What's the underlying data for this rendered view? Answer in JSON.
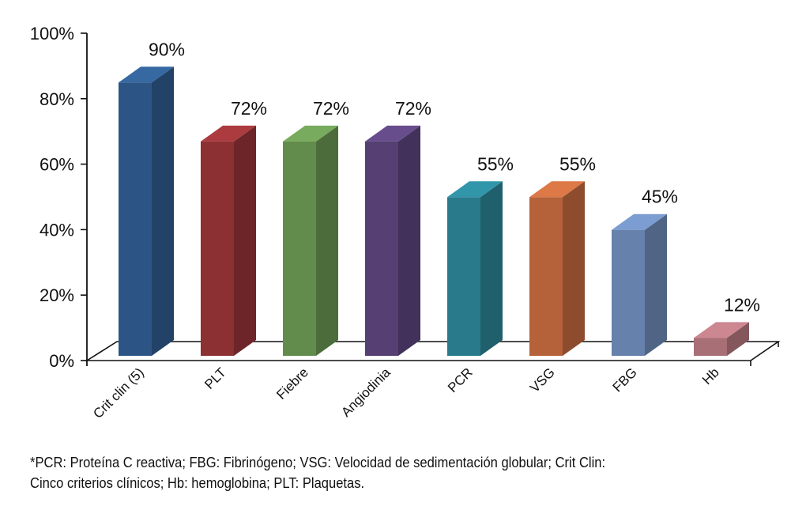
{
  "chart_data": {
    "type": "bar",
    "categories": [
      "Crit clin (5)",
      "PLT",
      "Fiebre",
      "Angiodinia",
      "PCR",
      "VSG",
      "FBG",
      "Hb"
    ],
    "values": [
      90,
      72,
      72,
      72,
      55,
      55,
      45,
      12
    ],
    "data_labels": [
      "90%",
      "72%",
      "72%",
      "72%",
      "55%",
      "55%",
      "45%",
      "12%"
    ],
    "colors": [
      "#2c5585",
      "#8c3034",
      "#628c4c",
      "#553f73",
      "#297b8c",
      "#b5623a",
      "#6681ab",
      "#a86f76"
    ],
    "ylim": [
      0,
      100
    ],
    "y_ticks": [
      0,
      20,
      40,
      60,
      80,
      100
    ],
    "y_tick_labels": [
      "0%",
      "20%",
      "40%",
      "60%",
      "80%",
      "100%"
    ],
    "grid": false,
    "legend": "none",
    "style": "3d-bar"
  },
  "footnote": {
    "line1": "*PCR: Proteína C reactiva; FBG: Fibrinógeno; VSG: Velocidad de sedimentación globular; Crit Clin:",
    "line2": "Cinco criterios clínicos; Hb: hemoglobina; PLT: Plaquetas."
  }
}
